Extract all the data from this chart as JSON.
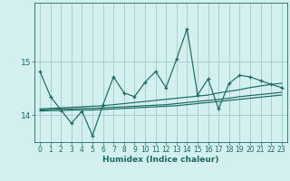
{
  "xlabel": "Humidex (Indice chaleur)",
  "background_color": "#d4efef",
  "grid_color": "#aacece",
  "line_color": "#1a6b60",
  "x": [
    0,
    1,
    2,
    3,
    4,
    5,
    6,
    7,
    8,
    9,
    10,
    11,
    12,
    13,
    14,
    15,
    16,
    17,
    18,
    19,
    20,
    21,
    22,
    23
  ],
  "y_main": [
    14.82,
    14.35,
    14.1,
    13.85,
    14.08,
    13.62,
    14.2,
    14.72,
    14.42,
    14.35,
    14.62,
    14.82,
    14.52,
    15.05,
    15.62,
    14.38,
    14.68,
    14.12,
    14.6,
    14.75,
    14.72,
    14.65,
    14.58,
    14.52
  ],
  "y_line1": [
    14.12,
    14.13,
    14.14,
    14.15,
    14.16,
    14.17,
    14.18,
    14.2,
    14.22,
    14.24,
    14.26,
    14.28,
    14.3,
    14.32,
    14.34,
    14.36,
    14.38,
    14.42,
    14.45,
    14.48,
    14.52,
    14.55,
    14.58,
    14.6
  ],
  "y_line2": [
    14.1,
    14.11,
    14.12,
    14.12,
    14.13,
    14.13,
    14.14,
    14.15,
    14.16,
    14.17,
    14.18,
    14.19,
    14.2,
    14.22,
    14.24,
    14.26,
    14.28,
    14.3,
    14.32,
    14.35,
    14.37,
    14.39,
    14.41,
    14.43
  ],
  "y_line3": [
    14.08,
    14.09,
    14.09,
    14.1,
    14.1,
    14.1,
    14.11,
    14.12,
    14.13,
    14.14,
    14.15,
    14.16,
    14.17,
    14.18,
    14.2,
    14.22,
    14.24,
    14.26,
    14.28,
    14.3,
    14.32,
    14.34,
    14.36,
    14.38
  ],
  "yticks": [
    14,
    15
  ],
  "ylim": [
    13.5,
    16.1
  ],
  "xlim": [
    -0.5,
    23.5
  ],
  "xticks": [
    0,
    1,
    2,
    3,
    4,
    5,
    6,
    7,
    8,
    9,
    10,
    11,
    12,
    13,
    14,
    15,
    16,
    17,
    18,
    19,
    20,
    21,
    22,
    23
  ],
  "tick_fontsize": 5.5,
  "xlabel_fontsize": 6.5
}
